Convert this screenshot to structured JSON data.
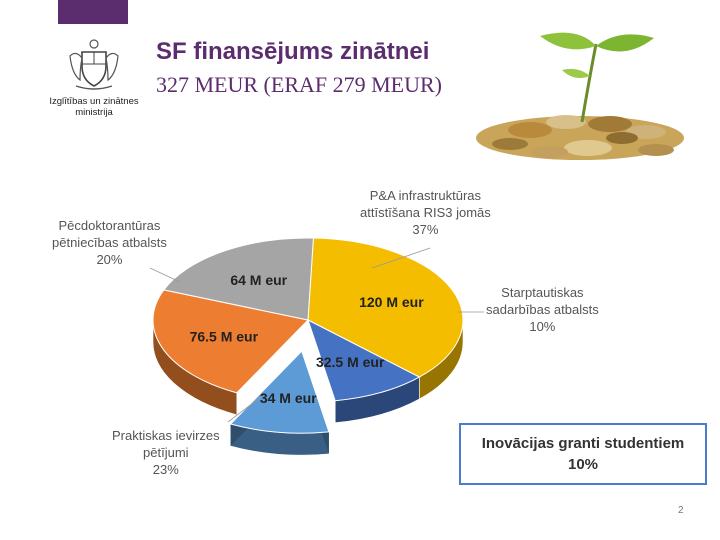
{
  "header": {
    "title": "SF finansējums zinātnei",
    "subtitle": "327 MEUR (ERAF 279 MEUR)",
    "ministry_line1": "Izglītības un zinātnes",
    "ministry_line2": "ministrija",
    "logo_icon": "coat-of-arms-icon",
    "illustration_icon": "coins-sprout-icon"
  },
  "chart_data": {
    "type": "pie",
    "title": "",
    "slices": [
      {
        "label_lines": [
          "P&A infrastruktūras",
          "attīstīšana RIS3 jomās",
          "37%"
        ],
        "amount": "120 M eur",
        "value": 120,
        "percent": 37,
        "color": "#f5bd00"
      },
      {
        "label_lines": [
          "Starptautiskas",
          "sadarbības atbalsts",
          "10%"
        ],
        "amount": "32.5 M eur",
        "value": 32.5,
        "percent": 10,
        "color": "#4672c4"
      },
      {
        "label_lines": [],
        "amount": "34 M eur",
        "value": 34,
        "percent": 10,
        "color": "#5c9bd5",
        "exploded": true
      },
      {
        "label_lines": [
          "Praktiskas ievirzes",
          "pētījumi",
          "23%"
        ],
        "amount": "76.5 M eur",
        "value": 76.5,
        "percent": 23,
        "color": "#ed7d31"
      },
      {
        "label_lines": [
          "Pēcdoktorantūras",
          "pētniecības atbalsts",
          "20%"
        ],
        "amount": "64 M eur",
        "value": 64,
        "percent": 20,
        "color": "#a5a5a5"
      }
    ],
    "highlight": {
      "line1": "Inovācijas granti studentiem",
      "line2": "10%"
    }
  },
  "footer": {
    "page_number": "2"
  }
}
